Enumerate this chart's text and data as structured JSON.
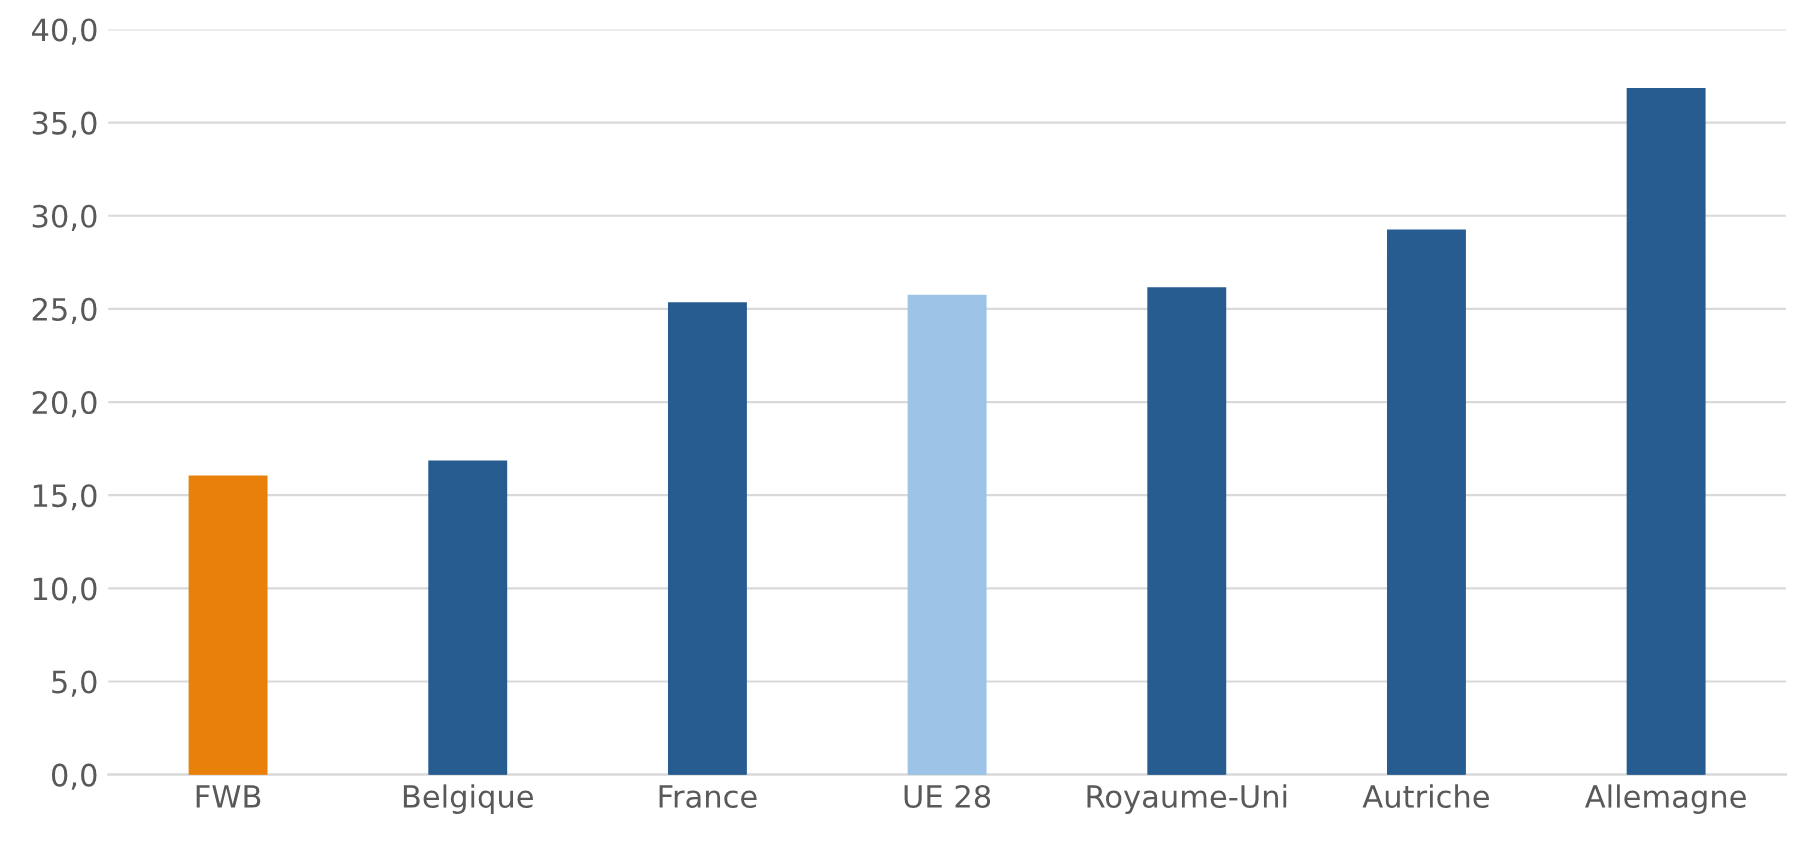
{
  "chart_data": {
    "type": "bar",
    "categories": [
      "FWB",
      "Belgique",
      "France",
      "UE 28",
      "Royaume-Uni",
      "Autriche",
      "Allemagne"
    ],
    "values": [
      16.0,
      16.8,
      25.3,
      25.7,
      26.1,
      29.2,
      36.8
    ],
    "colors": [
      "#e8800a",
      "#275c91",
      "#275c91",
      "#9dc3e6",
      "#275c91",
      "#275c91",
      "#275c91"
    ],
    "ylim": [
      0,
      40
    ],
    "yticks": [
      {
        "value": 0,
        "label": "0,0"
      },
      {
        "value": 5,
        "label": "5,0"
      },
      {
        "value": 10,
        "label": "10,0"
      },
      {
        "value": 15,
        "label": "15,0"
      },
      {
        "value": 20,
        "label": "20,0"
      },
      {
        "value": 25,
        "label": "25,0"
      },
      {
        "value": 30,
        "label": "30,0"
      },
      {
        "value": 35,
        "label": "35,0"
      },
      {
        "value": 40,
        "label": "40,0"
      }
    ],
    "grid": "y",
    "legend": false
  }
}
